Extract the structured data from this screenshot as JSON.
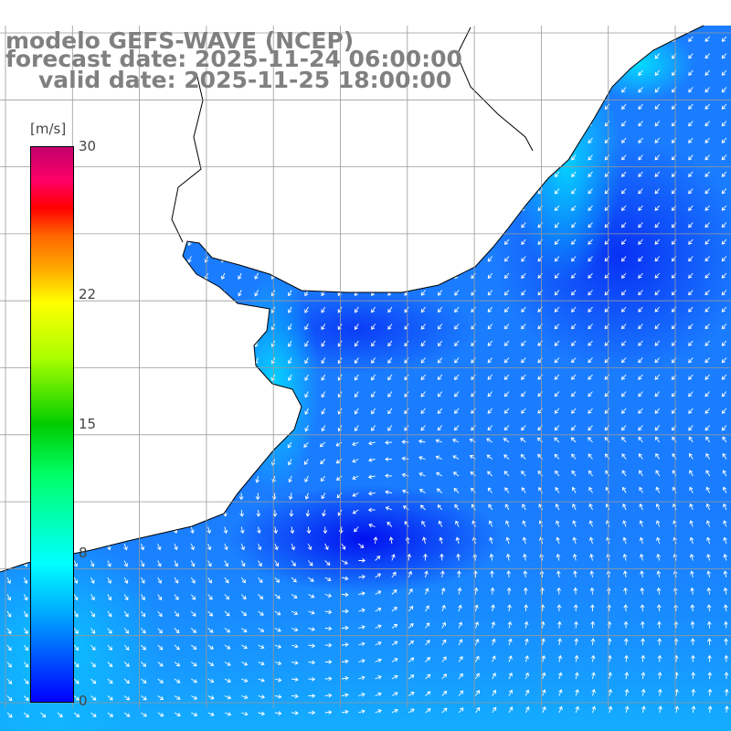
{
  "titles": {
    "model": "modelo GEFS-WAVE (NCEP)",
    "forecast": "forecast date: 2025-11-24 06:00:00",
    "valid": "valid date: 2025-11-25 18:00:00"
  },
  "colorbar": {
    "unit": "[m/s]",
    "ticks": [
      "30",
      "22",
      "15",
      "8",
      "0"
    ],
    "range": [
      0,
      30
    ],
    "colors": [
      "#0000ff",
      "#00aaff",
      "#00ffff",
      "#00ff66",
      "#00cc00",
      "#ffff00",
      "#ff6600",
      "#ff0000",
      "#c2006e"
    ]
  },
  "map": {
    "land_color": "#ffffff",
    "grid_color": "#999999",
    "coast_color": "#000000",
    "arrow_color": "#ffffff",
    "ocean_low_color": "#0000ff",
    "ocean_mid_color": "#0a8cff",
    "ocean_high_color": "#00ffff",
    "grid": true,
    "arrows": true
  }
}
